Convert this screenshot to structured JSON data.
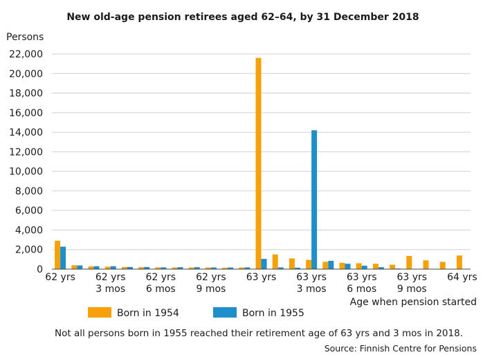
{
  "chart_data": {
    "type": "bar",
    "title": "New old-age pension retirees aged 62–64, by 31 December 2018",
    "ylabel": "Persons",
    "xlabel": "Age when pension started",
    "ylim": [
      0,
      22000
    ],
    "yticks": [
      "0",
      "2,000",
      "4,000",
      "6,000",
      "8,000",
      "10,000",
      "12,000",
      "14,000",
      "16,000",
      "18,000",
      "20,000",
      "22,000"
    ],
    "ytick_values": [
      0,
      2000,
      4000,
      6000,
      8000,
      10000,
      12000,
      14000,
      16000,
      18000,
      20000,
      22000
    ],
    "x_tick_labels": [
      {
        "index": 0,
        "lines": [
          "62 yrs"
        ]
      },
      {
        "index": 3,
        "lines": [
          "62 yrs",
          "3 mos"
        ]
      },
      {
        "index": 6,
        "lines": [
          "62 yrs",
          "6 mos"
        ]
      },
      {
        "index": 9,
        "lines": [
          "62 yrs",
          "9 mos"
        ]
      },
      {
        "index": 12,
        "lines": [
          "63 yrs"
        ]
      },
      {
        "index": 15,
        "lines": [
          "63 yrs",
          "3 mos"
        ]
      },
      {
        "index": 18,
        "lines": [
          "63 yrs",
          "6 mos"
        ]
      },
      {
        "index": 21,
        "lines": [
          "63 yrs",
          "9 mos"
        ]
      },
      {
        "index": 24,
        "lines": [
          "64 yrs"
        ]
      }
    ],
    "series": [
      {
        "name": "Born in 1954",
        "color": "#f7a10a",
        "values": [
          2900,
          400,
          280,
          250,
          220,
          200,
          180,
          170,
          170,
          170,
          140,
          170,
          21600,
          1500,
          1100,
          950,
          750,
          650,
          600,
          550,
          450,
          1350,
          900,
          750,
          1400
        ]
      },
      {
        "name": "Born in 1955",
        "color": "#1f8fcc",
        "values": [
          2300,
          380,
          300,
          300,
          220,
          220,
          180,
          200,
          200,
          170,
          170,
          180,
          1050,
          180,
          150,
          14200,
          850,
          550,
          350,
          200,
          60,
          0,
          0,
          0,
          0
        ]
      }
    ],
    "grid": "horizontal",
    "legend": "bottom-left"
  },
  "note": "Not all persons born in 1955 reached their retirement age of 63 yrs and 3 mos in 2018.",
  "source": "Source: Finnish Centre for Pensions"
}
